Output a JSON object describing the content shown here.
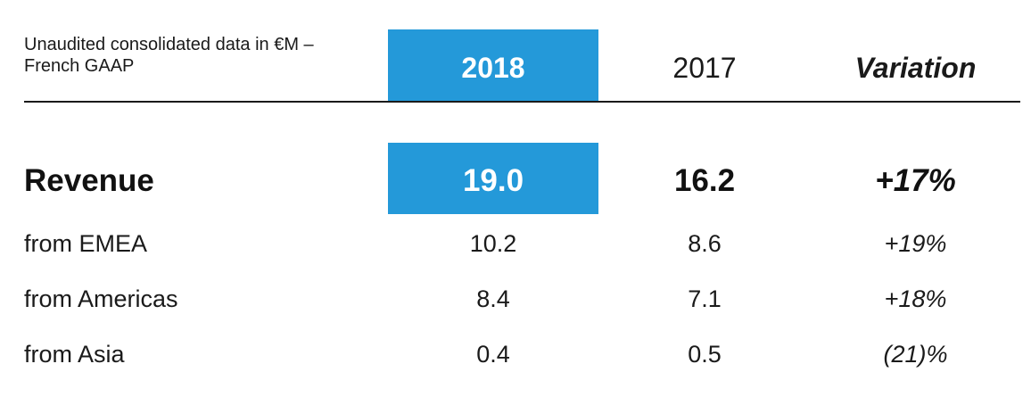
{
  "caption": "Unaudited consolidated data in €M – French GAAP",
  "colors": {
    "highlight": "#2499d9",
    "text": "#1a1a1a"
  },
  "headers": {
    "year_current": "2018",
    "year_prior": "2017",
    "variation": "Variation"
  },
  "rows": [
    {
      "label": "Revenue",
      "current": "19.0",
      "prior": "16.2",
      "variation": "+17%"
    },
    {
      "label": "from EMEA",
      "current": "10.2",
      "prior": "8.6",
      "variation": "+19%"
    },
    {
      "label": "from Americas",
      "current": "8.4",
      "prior": "7.1",
      "variation": "+18%"
    },
    {
      "label": "from Asia",
      "current": "0.4",
      "prior": "0.5",
      "variation": "(21)%"
    }
  ]
}
